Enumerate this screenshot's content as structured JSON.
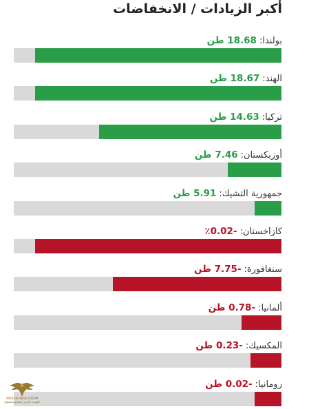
{
  "title": "أكبر الزيادات / الانخفاضات",
  "colors": {
    "positive": "#2a9d48",
    "negative": "#b71427",
    "track": "#d9d9d9"
  },
  "rows": [
    {
      "country": "بولندا:",
      "value": "18.68 طن",
      "sign": "pos",
      "fill": 0.92
    },
    {
      "country": "الهند:",
      "value": "18.67 طن",
      "sign": "pos",
      "fill": 0.92
    },
    {
      "country": "تركيا:",
      "value": "14.63 طن",
      "sign": "pos",
      "fill": 0.68
    },
    {
      "country": "أوزبكستان:",
      "value": "7.46 طن",
      "sign": "pos",
      "fill": 0.2
    },
    {
      "country": "جمهورية التشيك:",
      "value": "5.91 طن",
      "sign": "pos",
      "fill": 0.1
    },
    {
      "country": "كازاخستان:",
      "value": "-0.02٪",
      "sign": "neg",
      "fill": 0.92
    },
    {
      "country": "سنغافورة:",
      "value": "-7.75 طن",
      "sign": "neg",
      "fill": 0.63
    },
    {
      "country": "ألمانيا:",
      "value": "-0.78 طن",
      "sign": "neg",
      "fill": 0.15
    },
    {
      "country": "المكسيك:",
      "value": "-0.23 طن",
      "sign": "neg",
      "fill": 0.115
    },
    {
      "country": "رومانيا:",
      "value": "-0.02 طن",
      "sign": "neg",
      "fill": 0.1
    }
  ],
  "watermark": {
    "line1": "ARAB DEFENSE FORUM",
    "line2": "المنتدى العربي للدفاع والتسليح"
  }
}
